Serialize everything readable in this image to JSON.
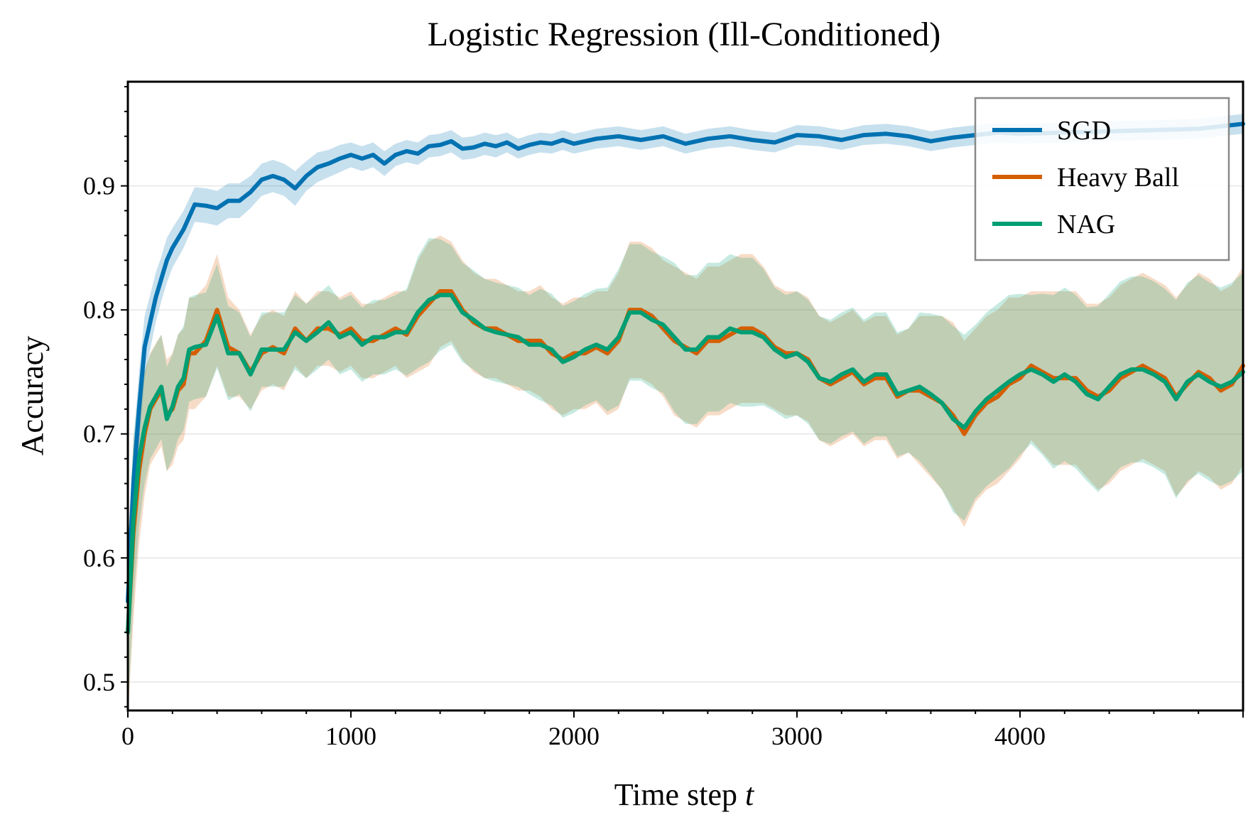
{
  "chart_data": {
    "type": "line",
    "title": "Logistic Regression (Ill-Conditioned)",
    "xlabel": "Time step",
    "xlabel_var": "t",
    "ylabel": "Accuracy",
    "xlim": [
      0,
      5000
    ],
    "ylim": [
      0.477,
      0.984
    ],
    "xticks": [
      0,
      1000,
      2000,
      3000,
      4000
    ],
    "xtick_labels": [
      "0",
      "1000",
      "2000",
      "3000",
      "4000"
    ],
    "yticks": [
      0.5,
      0.6,
      0.7,
      0.8,
      0.9
    ],
    "ytick_labels": [
      "0.5",
      "0.6",
      "0.7",
      "0.8",
      "0.9"
    ],
    "grid": "horizontal",
    "legend_position": "top-right",
    "series": [
      {
        "name": "SGD",
        "color": "#0072b2",
        "x": [
          0,
          25,
          50,
          75,
          100,
          125,
          150,
          175,
          200,
          250,
          300,
          350,
          400,
          450,
          500,
          550,
          600,
          650,
          700,
          750,
          800,
          850,
          900,
          950,
          1000,
          1050,
          1100,
          1150,
          1200,
          1250,
          1300,
          1350,
          1400,
          1450,
          1500,
          1550,
          1600,
          1650,
          1700,
          1750,
          1800,
          1850,
          1900,
          1950,
          2000,
          2100,
          2200,
          2300,
          2400,
          2500,
          2600,
          2700,
          2800,
          2900,
          3000,
          3100,
          3200,
          3300,
          3400,
          3500,
          3600,
          3700,
          3800,
          3900,
          4000,
          4200,
          4400,
          4600,
          4800,
          5000
        ],
        "values": [
          0.565,
          0.66,
          0.72,
          0.77,
          0.79,
          0.81,
          0.825,
          0.84,
          0.85,
          0.865,
          0.885,
          0.884,
          0.882,
          0.888,
          0.888,
          0.895,
          0.905,
          0.908,
          0.905,
          0.898,
          0.908,
          0.915,
          0.918,
          0.922,
          0.925,
          0.922,
          0.925,
          0.918,
          0.925,
          0.928,
          0.926,
          0.932,
          0.933,
          0.936,
          0.93,
          0.931,
          0.934,
          0.932,
          0.935,
          0.93,
          0.933,
          0.935,
          0.934,
          0.937,
          0.934,
          0.938,
          0.94,
          0.937,
          0.94,
          0.934,
          0.938,
          0.94,
          0.937,
          0.935,
          0.941,
          0.94,
          0.937,
          0.941,
          0.942,
          0.94,
          0.936,
          0.939,
          0.941,
          0.943,
          0.942,
          0.943,
          0.944,
          0.945,
          0.946,
          0.95
        ],
        "band_halfwidth": [
          0.04,
          0.035,
          0.03,
          0.025,
          0.022,
          0.02,
          0.018,
          0.018,
          0.016,
          0.015,
          0.014,
          0.014,
          0.014,
          0.014,
          0.014,
          0.013,
          0.013,
          0.013,
          0.013,
          0.014,
          0.012,
          0.012,
          0.011,
          0.011,
          0.01,
          0.01,
          0.01,
          0.01,
          0.009,
          0.009,
          0.009,
          0.009,
          0.009,
          0.009,
          0.009,
          0.009,
          0.009,
          0.009,
          0.008,
          0.008,
          0.008,
          0.008,
          0.008,
          0.008,
          0.008,
          0.008,
          0.008,
          0.008,
          0.008,
          0.008,
          0.008,
          0.008,
          0.008,
          0.008,
          0.008,
          0.008,
          0.008,
          0.008,
          0.008,
          0.008,
          0.008,
          0.008,
          0.008,
          0.008,
          0.008,
          0.008,
          0.008,
          0.008,
          0.008,
          0.008
        ]
      },
      {
        "name": "Heavy Ball",
        "color": "#d55e00",
        "x": [
          0,
          25,
          50,
          75,
          100,
          125,
          150,
          175,
          200,
          225,
          250,
          275,
          300,
          350,
          400,
          450,
          500,
          550,
          600,
          650,
          700,
          750,
          800,
          850,
          900,
          950,
          1000,
          1050,
          1100,
          1150,
          1200,
          1250,
          1300,
          1350,
          1400,
          1450,
          1500,
          1550,
          1600,
          1650,
          1700,
          1750,
          1800,
          1850,
          1900,
          1950,
          2000,
          2050,
          2100,
          2150,
          2200,
          2250,
          2300,
          2350,
          2400,
          2450,
          2500,
          2550,
          2600,
          2650,
          2700,
          2750,
          2800,
          2850,
          2900,
          2950,
          3000,
          3050,
          3100,
          3150,
          3200,
          3250,
          3300,
          3350,
          3400,
          3450,
          3500,
          3550,
          3600,
          3650,
          3700,
          3750,
          3800,
          3850,
          3900,
          3950,
          4000,
          4050,
          4100,
          4150,
          4200,
          4250,
          4300,
          4350,
          4400,
          4450,
          4500,
          4550,
          4600,
          4650,
          4700,
          4750,
          4800,
          4850,
          4900,
          4950,
          5000
        ],
        "values": [
          0.54,
          0.62,
          0.67,
          0.7,
          0.72,
          0.728,
          0.735,
          0.715,
          0.72,
          0.735,
          0.74,
          0.765,
          0.765,
          0.775,
          0.8,
          0.77,
          0.765,
          0.75,
          0.765,
          0.77,
          0.765,
          0.785,
          0.775,
          0.785,
          0.785,
          0.78,
          0.785,
          0.775,
          0.775,
          0.78,
          0.785,
          0.78,
          0.795,
          0.805,
          0.815,
          0.815,
          0.8,
          0.79,
          0.785,
          0.785,
          0.78,
          0.775,
          0.775,
          0.775,
          0.765,
          0.76,
          0.765,
          0.765,
          0.77,
          0.765,
          0.775,
          0.8,
          0.8,
          0.795,
          0.785,
          0.775,
          0.77,
          0.765,
          0.775,
          0.775,
          0.78,
          0.785,
          0.785,
          0.78,
          0.77,
          0.765,
          0.765,
          0.76,
          0.745,
          0.74,
          0.745,
          0.75,
          0.74,
          0.745,
          0.745,
          0.73,
          0.735,
          0.735,
          0.73,
          0.725,
          0.715,
          0.7,
          0.715,
          0.725,
          0.73,
          0.74,
          0.745,
          0.755,
          0.75,
          0.745,
          0.745,
          0.745,
          0.735,
          0.73,
          0.735,
          0.745,
          0.75,
          0.755,
          0.75,
          0.745,
          0.73,
          0.74,
          0.75,
          0.745,
          0.735,
          0.74,
          0.755
        ],
        "band_halfwidth": [
          0.07,
          0.07,
          0.06,
          0.05,
          0.045,
          0.045,
          0.045,
          0.045,
          0.045,
          0.045,
          0.045,
          0.045,
          0.045,
          0.045,
          0.045,
          0.04,
          0.035,
          0.03,
          0.03,
          0.03,
          0.03,
          0.03,
          0.03,
          0.03,
          0.03,
          0.03,
          0.03,
          0.03,
          0.03,
          0.03,
          0.03,
          0.035,
          0.045,
          0.05,
          0.045,
          0.04,
          0.04,
          0.04,
          0.04,
          0.04,
          0.04,
          0.04,
          0.04,
          0.045,
          0.045,
          0.045,
          0.045,
          0.045,
          0.045,
          0.05,
          0.055,
          0.055,
          0.055,
          0.055,
          0.055,
          0.06,
          0.06,
          0.06,
          0.06,
          0.06,
          0.06,
          0.06,
          0.06,
          0.055,
          0.05,
          0.05,
          0.05,
          0.05,
          0.05,
          0.05,
          0.05,
          0.05,
          0.05,
          0.05,
          0.05,
          0.05,
          0.05,
          0.06,
          0.065,
          0.07,
          0.075,
          0.075,
          0.07,
          0.07,
          0.07,
          0.07,
          0.065,
          0.06,
          0.065,
          0.07,
          0.07,
          0.07,
          0.07,
          0.075,
          0.075,
          0.075,
          0.075,
          0.075,
          0.075,
          0.075,
          0.08,
          0.08,
          0.08,
          0.08,
          0.08,
          0.08,
          0.08
        ]
      },
      {
        "name": "NAG",
        "color": "#009e73",
        "x": [
          0,
          25,
          50,
          75,
          100,
          125,
          150,
          175,
          200,
          225,
          250,
          275,
          300,
          350,
          400,
          450,
          500,
          550,
          600,
          650,
          700,
          750,
          800,
          850,
          900,
          950,
          1000,
          1050,
          1100,
          1150,
          1200,
          1250,
          1300,
          1350,
          1400,
          1450,
          1500,
          1550,
          1600,
          1650,
          1700,
          1750,
          1800,
          1850,
          1900,
          1950,
          2000,
          2050,
          2100,
          2150,
          2200,
          2250,
          2300,
          2350,
          2400,
          2450,
          2500,
          2550,
          2600,
          2650,
          2700,
          2750,
          2800,
          2850,
          2900,
          2950,
          3000,
          3050,
          3100,
          3150,
          3200,
          3250,
          3300,
          3350,
          3400,
          3450,
          3500,
          3550,
          3600,
          3650,
          3700,
          3750,
          3800,
          3850,
          3900,
          3950,
          4000,
          4050,
          4100,
          4150,
          4200,
          4250,
          4300,
          4350,
          4400,
          4450,
          4500,
          4550,
          4600,
          4650,
          4700,
          4750,
          4800,
          4850,
          4900,
          4950,
          5000
        ],
        "values": [
          0.54,
          0.63,
          0.68,
          0.705,
          0.722,
          0.73,
          0.738,
          0.712,
          0.722,
          0.738,
          0.745,
          0.768,
          0.77,
          0.772,
          0.795,
          0.765,
          0.765,
          0.748,
          0.768,
          0.768,
          0.768,
          0.782,
          0.775,
          0.782,
          0.79,
          0.778,
          0.782,
          0.772,
          0.778,
          0.778,
          0.782,
          0.782,
          0.798,
          0.808,
          0.812,
          0.812,
          0.798,
          0.792,
          0.785,
          0.782,
          0.78,
          0.778,
          0.772,
          0.772,
          0.768,
          0.758,
          0.762,
          0.768,
          0.772,
          0.768,
          0.778,
          0.798,
          0.798,
          0.792,
          0.788,
          0.778,
          0.768,
          0.768,
          0.778,
          0.778,
          0.785,
          0.782,
          0.782,
          0.778,
          0.768,
          0.762,
          0.765,
          0.758,
          0.745,
          0.742,
          0.748,
          0.752,
          0.742,
          0.748,
          0.748,
          0.732,
          0.735,
          0.738,
          0.732,
          0.725,
          0.712,
          0.705,
          0.718,
          0.728,
          0.735,
          0.742,
          0.748,
          0.752,
          0.748,
          0.742,
          0.748,
          0.742,
          0.732,
          0.728,
          0.738,
          0.748,
          0.752,
          0.752,
          0.748,
          0.742,
          0.728,
          0.742,
          0.748,
          0.742,
          0.738,
          0.742,
          0.75
        ],
        "band_halfwidth": [
          0.065,
          0.065,
          0.055,
          0.045,
          0.042,
          0.042,
          0.042,
          0.042,
          0.042,
          0.042,
          0.042,
          0.042,
          0.042,
          0.042,
          0.042,
          0.038,
          0.033,
          0.03,
          0.03,
          0.03,
          0.03,
          0.03,
          0.03,
          0.03,
          0.03,
          0.03,
          0.03,
          0.03,
          0.03,
          0.03,
          0.03,
          0.035,
          0.045,
          0.05,
          0.045,
          0.04,
          0.04,
          0.04,
          0.04,
          0.04,
          0.04,
          0.04,
          0.04,
          0.045,
          0.045,
          0.045,
          0.045,
          0.045,
          0.045,
          0.05,
          0.055,
          0.055,
          0.055,
          0.055,
          0.055,
          0.06,
          0.06,
          0.06,
          0.06,
          0.06,
          0.06,
          0.06,
          0.06,
          0.055,
          0.05,
          0.05,
          0.05,
          0.05,
          0.05,
          0.05,
          0.05,
          0.05,
          0.05,
          0.05,
          0.05,
          0.05,
          0.05,
          0.06,
          0.065,
          0.07,
          0.075,
          0.075,
          0.07,
          0.07,
          0.07,
          0.07,
          0.065,
          0.06,
          0.065,
          0.07,
          0.07,
          0.07,
          0.07,
          0.075,
          0.075,
          0.075,
          0.075,
          0.075,
          0.075,
          0.075,
          0.08,
          0.08,
          0.08,
          0.08,
          0.08,
          0.08,
          0.08
        ]
      }
    ]
  }
}
